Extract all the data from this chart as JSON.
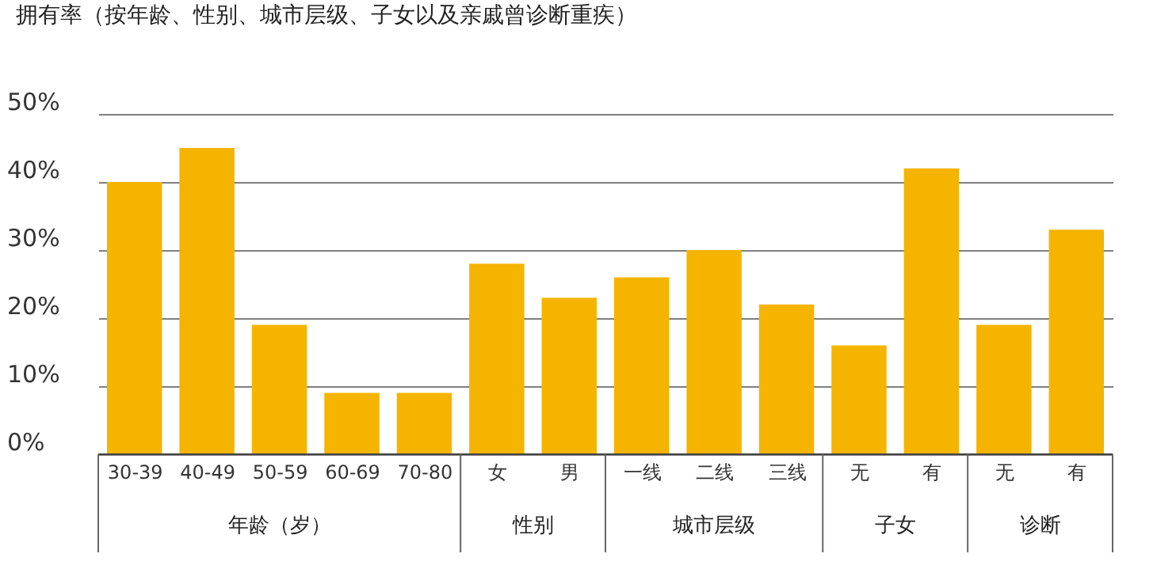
{
  "chart_data": {
    "type": "bar",
    "title": "拥有率（按年龄、性别、城市层级、子女以及亲戚曾诊断重疾）",
    "categories": [
      "30-39",
      "40-49",
      "50-59",
      "60-69",
      "70-80",
      "女",
      "男",
      "一线",
      "二线",
      "三线",
      "无",
      "有",
      "无",
      "有"
    ],
    "values": [
      40,
      45,
      19,
      9,
      9,
      28,
      23,
      26,
      30,
      22,
      16,
      42,
      19,
      33
    ],
    "color": "#f5b400",
    "ylim": [
      0,
      50
    ],
    "yticks": [
      {
        "value": 0,
        "label": "0%"
      },
      {
        "value": 10,
        "label": "10%"
      },
      {
        "value": 20,
        "label": "20%"
      },
      {
        "value": 30,
        "label": "30%"
      },
      {
        "value": 40,
        "label": "40%"
      },
      {
        "value": 50,
        "label": "50%"
      }
    ],
    "grid": "y",
    "annotations": [
      "年龄（岁）",
      "性别",
      "城市层级",
      "子女",
      "诊断"
    ]
  }
}
